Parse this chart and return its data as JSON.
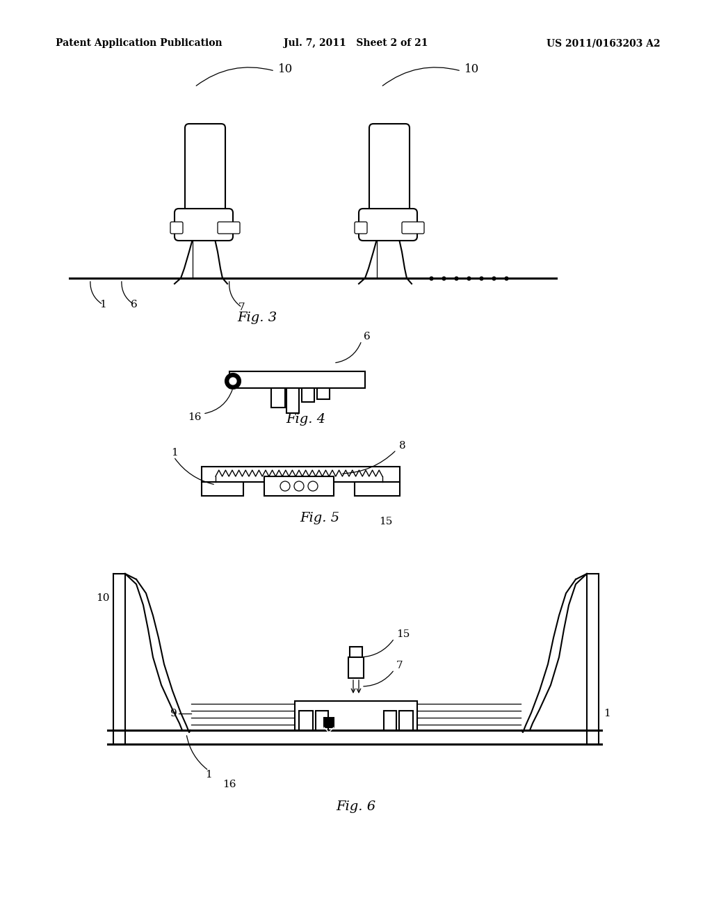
{
  "background_color": "#ffffff",
  "header_left": "Patent Application Publication",
  "header_center": "Jul. 7, 2011   Sheet 2 of 21",
  "header_right": "US 2011/0163203 A2",
  "fig3_caption": "Fig. 3",
  "fig4_caption": "Fig. 4",
  "fig5_caption": "Fig. 5",
  "fig6_caption": "Fig. 6",
  "line_color": "#000000",
  "bg_color": "#ffffff",
  "lw_main": 1.5,
  "lw_thin": 0.9
}
